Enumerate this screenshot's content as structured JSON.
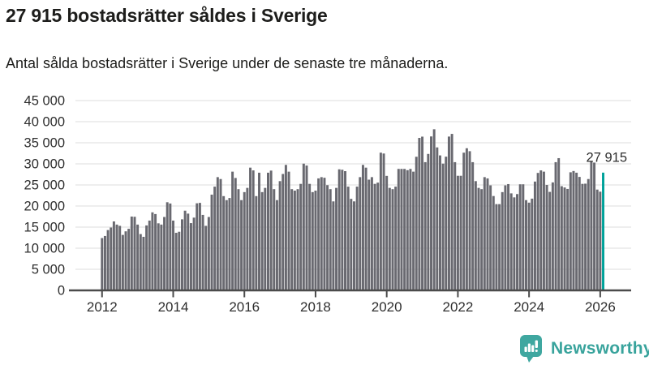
{
  "header": {
    "title": "27 915 bostadsrätter såldes i Sverige",
    "subtitle": "Antal sålda bostadsrätter i Sverige under de senaste tre månaderna."
  },
  "chart_data": {
    "type": "bar",
    "title": "27 915 bostadsrätter såldes i Sverige",
    "subtitle": "Antal sålda bostadsrätter i Sverige under de senaste tre månaderna.",
    "frequency": "monthly",
    "x_start": "2012-01",
    "x_end": "2026-02",
    "x_tick_labels": [
      "2012",
      "2014",
      "2016",
      "2018",
      "2020",
      "2022",
      "2024",
      "2026"
    ],
    "y_tick_labels": [
      "0",
      "5 000",
      "10 000",
      "15 000",
      "20 000",
      "25 000",
      "30 000",
      "35 000",
      "40 000",
      "45 000"
    ],
    "ylim": [
      0,
      45000
    ],
    "grid": true,
    "legend": "none",
    "values": [
      12400,
      12900,
      14300,
      14900,
      16350,
      15600,
      15300,
      13150,
      14000,
      14600,
      17500,
      17450,
      15600,
      13350,
      12700,
      15400,
      16550,
      18500,
      18100,
      15900,
      15600,
      17400,
      20900,
      20600,
      16550,
      13650,
      13900,
      16850,
      18900,
      18200,
      15950,
      17250,
      20650,
      20750,
      17900,
      15300,
      17400,
      22700,
      24600,
      26850,
      26400,
      22350,
      21400,
      21900,
      28150,
      26650,
      24000,
      21400,
      23300,
      24300,
      29100,
      28450,
      22350,
      27900,
      23300,
      24300,
      27900,
      28400,
      24000,
      21400,
      25900,
      27600,
      29750,
      28150,
      24000,
      23650,
      24000,
      25250,
      30050,
      29600,
      25250,
      23300,
      23650,
      26550,
      26850,
      26700,
      24950,
      24000,
      21100,
      24300,
      28700,
      28600,
      28270,
      24600,
      21700,
      21100,
      24600,
      26850,
      29750,
      29100,
      26250,
      26850,
      25250,
      25550,
      32650,
      32450,
      27150,
      24300,
      24000,
      24600,
      28800,
      28800,
      28800,
      28500,
      28800,
      28150,
      31680,
      36150,
      36450,
      30400,
      32350,
      36500,
      38200,
      33900,
      32000,
      30050,
      31700,
      36470,
      37100,
      30400,
      27170,
      27170,
      32650,
      33700,
      33000,
      30400,
      25900,
      24300,
      24000,
      26850,
      26550,
      24900,
      22370,
      20450,
      20450,
      23300,
      24900,
      25200,
      23000,
      22050,
      22830,
      25150,
      25150,
      21400,
      20800,
      21750,
      25800,
      27850,
      28450,
      28150,
      25000,
      23350,
      25600,
      30400,
      31350,
      24700,
      24400,
      24050,
      28000,
      28300,
      27900,
      26900,
      25250,
      25300,
      26400,
      30500,
      30300,
      23900,
      23400,
      27915
    ],
    "highlight": {
      "index": 169,
      "value": 27915,
      "label": "27 915",
      "color": "#00a29a"
    },
    "bar_color": "#696970",
    "axis_color": "#4b4b4b",
    "grid_color": "#e3e3e3",
    "text_color": "#2e2e2e"
  },
  "footer": {
    "brand": "Newsworthy",
    "brand_color": "#38a39c",
    "icon": "newsworthy-logo-icon"
  }
}
